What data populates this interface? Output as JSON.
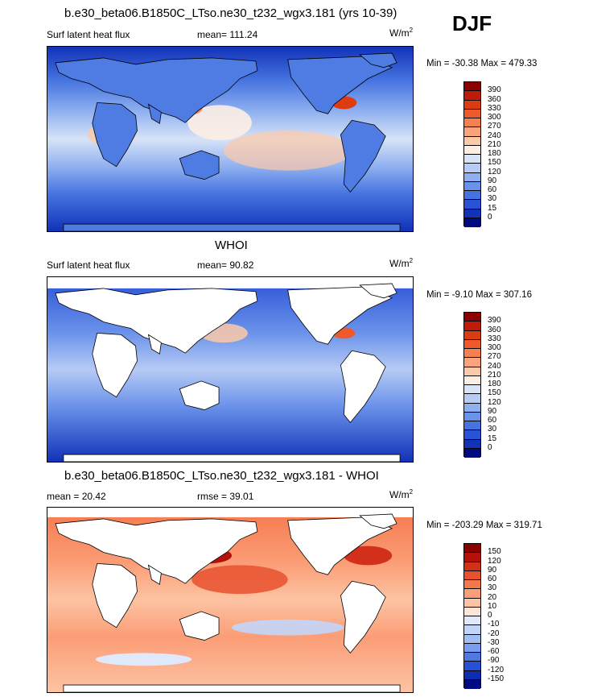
{
  "season": "DJF",
  "panels": [
    {
      "title": "b.e30_beta06.B1850C_LTso.ne30_t232_wgx3.181 (yrs 10-39)",
      "left_label": "Surf latent heat flux",
      "center_label": "mean= 111.24",
      "units": "W/m",
      "units_sup": "2",
      "minmax": "Min = -30.38 Max = 479.33",
      "levels": [
        "390",
        "360",
        "330",
        "300",
        "270",
        "240",
        "210",
        "180",
        "150",
        "120",
        "90",
        "60",
        "30",
        "15",
        "0"
      ],
      "colors": [
        "#8b0000",
        "#c01a08",
        "#dd3b12",
        "#ee5a2c",
        "#f5814f",
        "#fba37a",
        "#fdc9a8",
        "#fdeee4",
        "#d7e3f7",
        "#b6cbf5",
        "#8fb0f0",
        "#6a92ea",
        "#4573e0",
        "#2a52d6",
        "#1232b8",
        "#000a80"
      ]
    },
    {
      "title": "WHOI",
      "left_label": "Surf latent heat flux",
      "center_label": "mean=  90.82",
      "units": "W/m",
      "units_sup": "2",
      "minmax": "Min =  -9.10 Max = 307.16",
      "levels": [
        "390",
        "360",
        "330",
        "300",
        "270",
        "240",
        "210",
        "180",
        "150",
        "120",
        "90",
        "60",
        "30",
        "15",
        "0"
      ],
      "colors": [
        "#8b0000",
        "#c01a08",
        "#dd3b12",
        "#ee5a2c",
        "#f5814f",
        "#fba37a",
        "#fdc9a8",
        "#fdeee4",
        "#d7e3f7",
        "#b6cbf5",
        "#8fb0f0",
        "#6a92ea",
        "#4573e0",
        "#2a52d6",
        "#1232b8",
        "#000a80"
      ]
    },
    {
      "title": "b.e30_beta06.B1850C_LTso.ne30_t232_wgx3.181 - WHOI",
      "left_label": "mean =  20.42",
      "center_label": "rmse =  39.01",
      "units": "W/m",
      "units_sup": "2",
      "minmax": "Min = -203.29 Max = 319.71",
      "levels": [
        "150",
        "120",
        "90",
        "60",
        "30",
        "20",
        "10",
        "0",
        "-10",
        "-20",
        "-30",
        "-60",
        "-90",
        "-120",
        "-150"
      ],
      "colors": [
        "#8b0000",
        "#b4110a",
        "#d2301a",
        "#e8512e",
        "#f5784d",
        "#fb9d76",
        "#fdc3a3",
        "#fde6d8",
        "#dfe9fb",
        "#c2d5f8",
        "#a0bdf4",
        "#7a9def",
        "#4e78e4",
        "#2650d6",
        "#0d2cb0",
        "#000a80"
      ]
    }
  ]
}
